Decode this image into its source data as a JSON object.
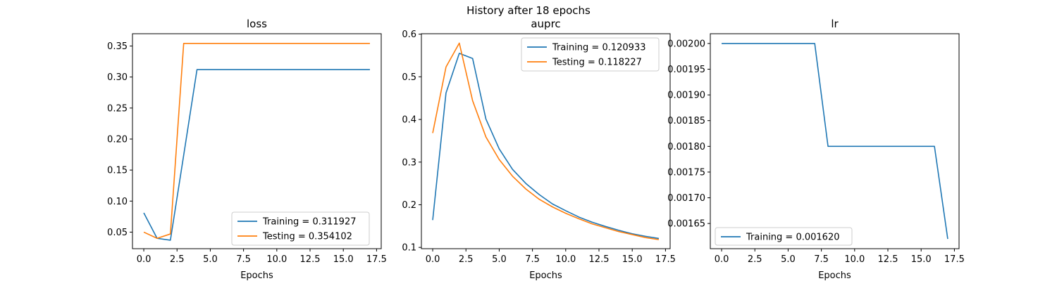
{
  "figure": {
    "suptitle": "History after 18 epochs"
  },
  "chart_data": [
    {
      "type": "line",
      "title": "loss",
      "xlabel": "Epochs",
      "ylabel": "",
      "xlim": [
        -0.85,
        17.85
      ],
      "ylim": [
        0.0233,
        0.3698
      ],
      "xticks": [
        0.0,
        2.5,
        5.0,
        7.5,
        10.0,
        12.5,
        15.0,
        17.5
      ],
      "xtick_labels": [
        "0.0",
        "2.5",
        "5.0",
        "7.5",
        "10.0",
        "12.5",
        "15.0",
        "17.5"
      ],
      "yticks": [
        0.05,
        0.1,
        0.15,
        0.2,
        0.25,
        0.3,
        0.35
      ],
      "ytick_labels": [
        "0.05",
        "0.10",
        "0.15",
        "0.20",
        "0.25",
        "0.30",
        "0.35"
      ],
      "grid": false,
      "legend_position": "lower-right",
      "x": [
        0,
        1,
        2,
        3,
        4,
        5,
        6,
        7,
        8,
        9,
        10,
        11,
        12,
        13,
        14,
        15,
        16,
        17
      ],
      "series": [
        {
          "name": "Training = 0.311927",
          "color": "#1f77b4",
          "values": [
            0.081,
            0.04,
            0.037,
            0.174,
            0.311927,
            0.311927,
            0.311927,
            0.311927,
            0.311927,
            0.311927,
            0.311927,
            0.311927,
            0.311927,
            0.311927,
            0.311927,
            0.311927,
            0.311927,
            0.311927
          ]
        },
        {
          "name": "Testing = 0.354102",
          "color": "#ff7f0e",
          "values": [
            0.05,
            0.04,
            0.047,
            0.354102,
            0.354102,
            0.354102,
            0.354102,
            0.354102,
            0.354102,
            0.354102,
            0.354102,
            0.354102,
            0.354102,
            0.354102,
            0.354102,
            0.354102,
            0.354102,
            0.354102
          ]
        }
      ]
    },
    {
      "type": "line",
      "title": "auprc",
      "xlabel": "Epochs",
      "ylabel": "",
      "xlim": [
        -0.85,
        17.85
      ],
      "ylim": [
        0.097,
        0.601
      ],
      "xticks": [
        0.0,
        2.5,
        5.0,
        7.5,
        10.0,
        12.5,
        15.0,
        17.5
      ],
      "xtick_labels": [
        "0.0",
        "2.5",
        "5.0",
        "7.5",
        "10.0",
        "12.5",
        "15.0",
        "17.5"
      ],
      "yticks": [
        0.1,
        0.2,
        0.3,
        0.4,
        0.5,
        0.6
      ],
      "ytick_labels": [
        "0.1",
        "0.2",
        "0.3",
        "0.4",
        "0.5",
        "0.6"
      ],
      "grid": false,
      "legend_position": "upper-right",
      "x": [
        0,
        1,
        2,
        3,
        4,
        5,
        6,
        7,
        8,
        9,
        10,
        11,
        12,
        13,
        14,
        15,
        16,
        17
      ],
      "series": [
        {
          "name": "Training = 0.120933",
          "color": "#1f77b4",
          "values": [
            0.164,
            0.462,
            0.555,
            0.543,
            0.401,
            0.331,
            0.283,
            0.25,
            0.224,
            0.202,
            0.186,
            0.171,
            0.159,
            0.149,
            0.14,
            0.132,
            0.126,
            0.120933
          ]
        },
        {
          "name": "Testing = 0.118227",
          "color": "#ff7f0e",
          "values": [
            0.368,
            0.523,
            0.579,
            0.444,
            0.359,
            0.306,
            0.267,
            0.237,
            0.213,
            0.195,
            0.18,
            0.167,
            0.155,
            0.146,
            0.137,
            0.13,
            0.123,
            0.118227
          ]
        }
      ]
    },
    {
      "type": "line",
      "title": "lr",
      "xlabel": "Epochs",
      "ylabel": "",
      "xlim": [
        -0.85,
        17.85
      ],
      "ylim": [
        0.001601,
        0.002019
      ],
      "xticks": [
        0.0,
        2.5,
        5.0,
        7.5,
        10.0,
        12.5,
        15.0,
        17.5
      ],
      "xtick_labels": [
        "0.0",
        "2.5",
        "5.0",
        "7.5",
        "10.0",
        "12.5",
        "15.0",
        "17.5"
      ],
      "yticks": [
        0.00165,
        0.0017,
        0.00175,
        0.0018,
        0.00185,
        0.0019,
        0.00195,
        0.002
      ],
      "ytick_labels": [
        "0.00165",
        "0.00170",
        "0.00175",
        "0.00180",
        "0.00185",
        "0.00190",
        "0.00195",
        "0.00200"
      ],
      "grid": false,
      "legend_position": "lower-left",
      "x": [
        0,
        1,
        2,
        3,
        4,
        5,
        6,
        7,
        8,
        9,
        10,
        11,
        12,
        13,
        14,
        15,
        16,
        17
      ],
      "series": [
        {
          "name": "Training = 0.001620",
          "color": "#1f77b4",
          "values": [
            0.002,
            0.002,
            0.002,
            0.002,
            0.002,
            0.002,
            0.002,
            0.002,
            0.0018,
            0.0018,
            0.0018,
            0.0018,
            0.0018,
            0.0018,
            0.0018,
            0.0018,
            0.0018,
            0.00162
          ]
        }
      ]
    }
  ]
}
